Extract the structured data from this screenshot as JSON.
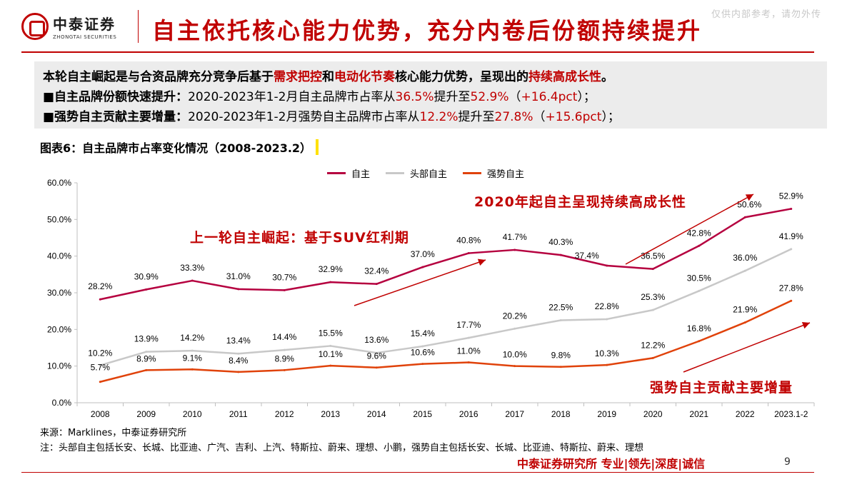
{
  "header": {
    "logo_cn": "中泰证券",
    "logo_en": "ZHONGTAI SECURITIES",
    "title": "自主依托核心能力优势，充分内卷后份额持续提升",
    "watermark": "仅供内部参考，请勿外传"
  },
  "summary": {
    "line1_a": "本轮自主崛起是与合资品牌充分竞争后基于",
    "line1_b": "需求把控",
    "line1_c": "和",
    "line1_d": "电动化节奏",
    "line1_e": "核心能力优势，呈现出的",
    "line1_f": "持续高成长性",
    "line1_g": "。",
    "line2_a": "■自主品牌份额快速提升：",
    "line2_b": "2020-2023年1-2月自主品牌市占率从",
    "line2_c": "36.5%",
    "line2_d": "提升至",
    "line2_e": "52.9%",
    "line2_f": "（",
    "line2_g": "+16.4pct",
    "line2_h": "）；",
    "line3_a": "■强势自主贡献主要增量：",
    "line3_b": "2020-2023年1-2月强势自主品牌市占率从",
    "line3_c": "12.2%",
    "line3_d": "提升至",
    "line3_e": "27.8%",
    "line3_f": "（",
    "line3_g": "+15.6pct",
    "line3_h": "）；"
  },
  "figure_title": "图表6：自主品牌市占率变化情况（2008-2023.2）",
  "annotations": {
    "a1": "上一轮自主崛起：基于SUV红利期",
    "a2": "2020年起自主呈现持续高成长性",
    "a3": "强势自主贡献主要增量"
  },
  "chart_data": {
    "type": "line",
    "categories": [
      "2008",
      "2009",
      "2010",
      "2011",
      "2012",
      "2013",
      "2014",
      "2015",
      "2016",
      "2017",
      "2018",
      "2019",
      "2020",
      "2021",
      "2022",
      "2023.1-2"
    ],
    "ylim": [
      0,
      60
    ],
    "yticks": [
      "0.0%",
      "10.0%",
      "20.0%",
      "30.0%",
      "40.0%",
      "50.0%",
      "60.0%"
    ],
    "series": [
      {
        "name": "自主",
        "color": "#b5003f",
        "values": [
          28.2,
          30.9,
          33.3,
          31.0,
          30.7,
          32.9,
          32.4,
          37.0,
          40.8,
          41.7,
          40.3,
          37.4,
          36.5,
          42.8,
          50.6,
          52.9
        ]
      },
      {
        "name": "头部自主",
        "color": "#c8c8c8",
        "values": [
          10.2,
          13.9,
          14.2,
          13.4,
          14.4,
          15.5,
          13.6,
          15.4,
          17.7,
          20.2,
          22.5,
          22.8,
          25.3,
          30.5,
          36.0,
          41.9
        ]
      },
      {
        "name": "强势自主",
        "color": "#e0420a",
        "values": [
          5.7,
          8.9,
          9.1,
          8.4,
          8.9,
          10.1,
          9.6,
          10.6,
          11.0,
          10.0,
          9.8,
          10.3,
          12.2,
          16.8,
          21.9,
          27.8
        ]
      }
    ]
  },
  "source": {
    "line1": "来源：Marklines，中泰证券研究所",
    "line2": "注：头部自主包括长安、长城、比亚迪、广汽、吉利、上汽、特斯拉、蔚来、理想、小鹏，强势自主包括长安、长城、比亚迪、特斯拉、蔚来、理想"
  },
  "footer": {
    "text": "中泰证券研究所 专业|领先|深度|诚信",
    "page": "9"
  }
}
